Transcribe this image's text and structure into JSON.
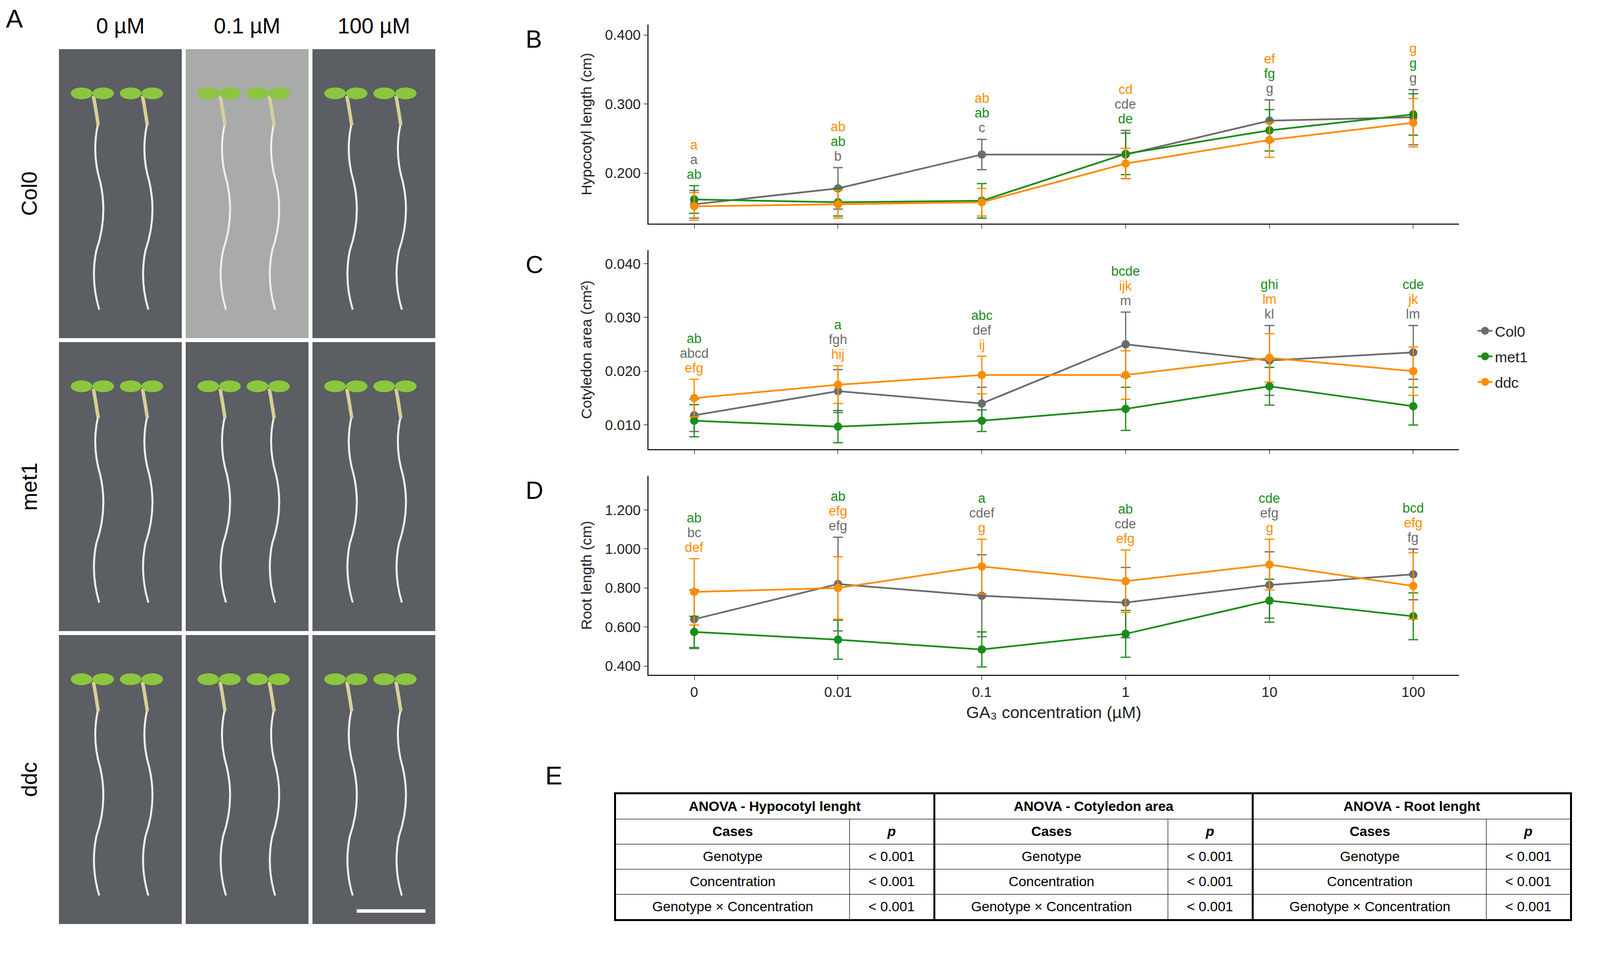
{
  "photo_panel": {
    "panel": "A",
    "columns": [
      "0 µM",
      "0.1 µM",
      "100 µM"
    ],
    "rows": [
      "Col0",
      "met1",
      "ddc"
    ]
  },
  "chart_data": [
    {
      "panel": "B",
      "type": "line",
      "marker": "circle",
      "y_label": "Hypocotyl length (cm)",
      "categories": [
        "0",
        "0.01",
        "0.1",
        "1",
        "10",
        "100"
      ],
      "ylim": [
        0.127,
        0.415
      ],
      "yticks": [
        {
          "value": 0.2,
          "label": "0.200"
        },
        {
          "value": 0.3,
          "label": "0.300"
        },
        {
          "value": 0.4,
          "label": "0.400"
        }
      ],
      "grid": false,
      "legend": "right",
      "tick_labels": "y",
      "series": [
        {
          "name": "Col0",
          "color": "#6b6b6b",
          "values": [
            0.155,
            0.178,
            0.227,
            0.227,
            0.276,
            0.281
          ],
          "errors": [
            0.02,
            0.03,
            0.022,
            0.035,
            0.03,
            0.04
          ]
        },
        {
          "name": "met1",
          "color": "#1a8c1a",
          "values": [
            0.162,
            0.158,
            0.16,
            0.228,
            0.262,
            0.285
          ],
          "errors": [
            0.02,
            0.02,
            0.025,
            0.03,
            0.03,
            0.03
          ]
        },
        {
          "name": "ddc",
          "color": "#ff8c00",
          "values": [
            0.152,
            0.155,
            0.158,
            0.214,
            0.248,
            0.273
          ],
          "errors": [
            0.02,
            0.02,
            0.02,
            0.022,
            0.025,
            0.035
          ]
        }
      ],
      "letters": [
        [
          {
            "series": "ddc",
            "text": "a"
          },
          {
            "series": "Col0",
            "text": "a"
          },
          {
            "series": "met1",
            "text": "ab"
          }
        ],
        [
          {
            "series": "ddc",
            "text": "ab"
          },
          {
            "series": "met1",
            "text": "ab"
          },
          {
            "series": "Col0",
            "text": "b"
          }
        ],
        [
          {
            "series": "ddc",
            "text": "ab"
          },
          {
            "series": "met1",
            "text": "ab"
          },
          {
            "series": "Col0",
            "text": "c"
          }
        ],
        [
          {
            "series": "ddc",
            "text": "cd"
          },
          {
            "series": "Col0",
            "text": "cde"
          },
          {
            "series": "met1",
            "text": "de"
          }
        ],
        [
          {
            "series": "ddc",
            "text": "ef"
          },
          {
            "series": "met1",
            "text": "fg"
          },
          {
            "series": "Col0",
            "text": "g"
          }
        ],
        [
          {
            "series": "ddc",
            "text": "g"
          },
          {
            "series": "met1",
            "text": "g"
          },
          {
            "series": "Col0",
            "text": "g"
          }
        ]
      ]
    },
    {
      "panel": "C",
      "type": "line",
      "marker": "circle",
      "y_label": "Cotyledon area (cm²)",
      "categories": [
        "0",
        "0.01",
        "0.1",
        "1",
        "10",
        "100"
      ],
      "ylim": [
        0.0055,
        0.0425
      ],
      "yticks": [
        {
          "value": 0.01,
          "label": "0.010"
        },
        {
          "value": 0.02,
          "label": "0.020"
        },
        {
          "value": 0.03,
          "label": "0.030"
        },
        {
          "value": 0.04,
          "label": "0.040"
        }
      ],
      "grid": false,
      "tick_labels": "y",
      "series": [
        {
          "name": "Col0",
          "color": "#6b6b6b",
          "values": [
            0.0118,
            0.0163,
            0.014,
            0.025,
            0.022,
            0.0235
          ],
          "errors": [
            0.003,
            0.004,
            0.003,
            0.006,
            0.0065,
            0.005
          ]
        },
        {
          "name": "met1",
          "color": "#1a8c1a",
          "values": [
            0.0108,
            0.0097,
            0.0108,
            0.013,
            0.0172,
            0.0135
          ],
          "errors": [
            0.003,
            0.003,
            0.002,
            0.004,
            0.0035,
            0.0035
          ]
        },
        {
          "name": "ddc",
          "color": "#ff8c00",
          "values": [
            0.015,
            0.0175,
            0.0193,
            0.0193,
            0.0225,
            0.02
          ],
          "errors": [
            0.0035,
            0.0035,
            0.0035,
            0.0045,
            0.0045,
            0.0045
          ]
        }
      ],
      "letters": [
        [
          {
            "series": "met1",
            "text": "ab"
          },
          {
            "series": "Col0",
            "text": "abcd"
          },
          {
            "series": "ddc",
            "text": "efg"
          }
        ],
        [
          {
            "series": "met1",
            "text": "a"
          },
          {
            "series": "Col0",
            "text": "fgh"
          },
          {
            "series": "ddc",
            "text": "hij"
          }
        ],
        [
          {
            "series": "met1",
            "text": "abc"
          },
          {
            "series": "Col0",
            "text": "def"
          },
          {
            "series": "ddc",
            "text": "ij"
          }
        ],
        [
          {
            "series": "met1",
            "text": "bcde"
          },
          {
            "series": "ddc",
            "text": "ijk"
          },
          {
            "series": "Col0",
            "text": "m"
          }
        ],
        [
          {
            "series": "met1",
            "text": "ghi"
          },
          {
            "series": "ddc",
            "text": "lm"
          },
          {
            "series": "Col0",
            "text": "kl"
          }
        ],
        [
          {
            "series": "met1",
            "text": "cde"
          },
          {
            "series": "ddc",
            "text": "jk"
          },
          {
            "series": "Col0",
            "text": "lm"
          }
        ]
      ]
    },
    {
      "panel": "D",
      "type": "line",
      "marker": "circle",
      "x_label": "GA₃ concentration (µM)",
      "y_label": "Root length (cm)",
      "categories": [
        "0",
        "0.01",
        "0.1",
        "1",
        "10",
        "100"
      ],
      "ylim": [
        0.355,
        1.375
      ],
      "yticks": [
        {
          "value": 0.4,
          "label": "0.400"
        },
        {
          "value": 0.6,
          "label": "0.600"
        },
        {
          "value": 0.8,
          "label": "0.800"
        },
        {
          "value": 1.0,
          "label": "1.000"
        },
        {
          "value": 1.2,
          "label": "1.200"
        }
      ],
      "grid": false,
      "series": [
        {
          "name": "Col0",
          "color": "#6b6b6b",
          "values": [
            0.64,
            0.82,
            0.76,
            0.725,
            0.815,
            0.87
          ],
          "errors": [
            0.15,
            0.24,
            0.21,
            0.18,
            0.17,
            0.13
          ]
        },
        {
          "name": "met1",
          "color": "#1a8c1a",
          "values": [
            0.575,
            0.535,
            0.485,
            0.565,
            0.735,
            0.655
          ],
          "errors": [
            0.08,
            0.1,
            0.09,
            0.12,
            0.11,
            0.12
          ]
        },
        {
          "name": "ddc",
          "color": "#ff8c00",
          "values": [
            0.78,
            0.8,
            0.91,
            0.835,
            0.92,
            0.81
          ],
          "errors": [
            0.17,
            0.16,
            0.14,
            0.16,
            0.13,
            0.17
          ]
        }
      ],
      "letters": [
        [
          {
            "series": "met1",
            "text": "ab"
          },
          {
            "series": "Col0",
            "text": "bc"
          },
          {
            "series": "ddc",
            "text": "def"
          }
        ],
        [
          {
            "series": "met1",
            "text": "ab"
          },
          {
            "series": "ddc",
            "text": "efg"
          },
          {
            "series": "Col0",
            "text": "efg"
          }
        ],
        [
          {
            "series": "met1",
            "text": "a"
          },
          {
            "series": "Col0",
            "text": "cdef"
          },
          {
            "series": "ddc",
            "text": "g"
          }
        ],
        [
          {
            "series": "met1",
            "text": "ab"
          },
          {
            "series": "Col0",
            "text": "cde"
          },
          {
            "series": "ddc",
            "text": "efg"
          }
        ],
        [
          {
            "series": "met1",
            "text": "cde"
          },
          {
            "series": "Col0",
            "text": "efg"
          },
          {
            "series": "ddc",
            "text": "g"
          }
        ],
        [
          {
            "series": "met1",
            "text": "bcd"
          },
          {
            "series": "ddc",
            "text": "efg"
          },
          {
            "series": "Col0",
            "text": "fg"
          }
        ]
      ]
    }
  ],
  "anova_panel": {
    "panel": "E",
    "tables": [
      {
        "title": "ANOVA - Hypocotyl lenght",
        "columns": [
          "Cases",
          "p"
        ],
        "rows": [
          [
            "Genotype",
            "< 0.001"
          ],
          [
            "Concentration",
            "< 0.001"
          ],
          [
            "Genotype × Concentration",
            "< 0.001"
          ]
        ]
      },
      {
        "title": "ANOVA - Cotyledon area",
        "columns": [
          "Cases",
          "p"
        ],
        "rows": [
          [
            "Genotype",
            "< 0.001"
          ],
          [
            "Concentration",
            "< 0.001"
          ],
          [
            "Genotype × Concentration",
            "< 0.001"
          ]
        ]
      },
      {
        "title": "ANOVA - Root lenght",
        "columns": [
          "Cases",
          "p"
        ],
        "rows": [
          [
            "Genotype",
            "< 0.001"
          ],
          [
            "Concentration",
            "< 0.001"
          ],
          [
            "Genotype × Concentration",
            "< 0.001"
          ]
        ]
      }
    ]
  }
}
